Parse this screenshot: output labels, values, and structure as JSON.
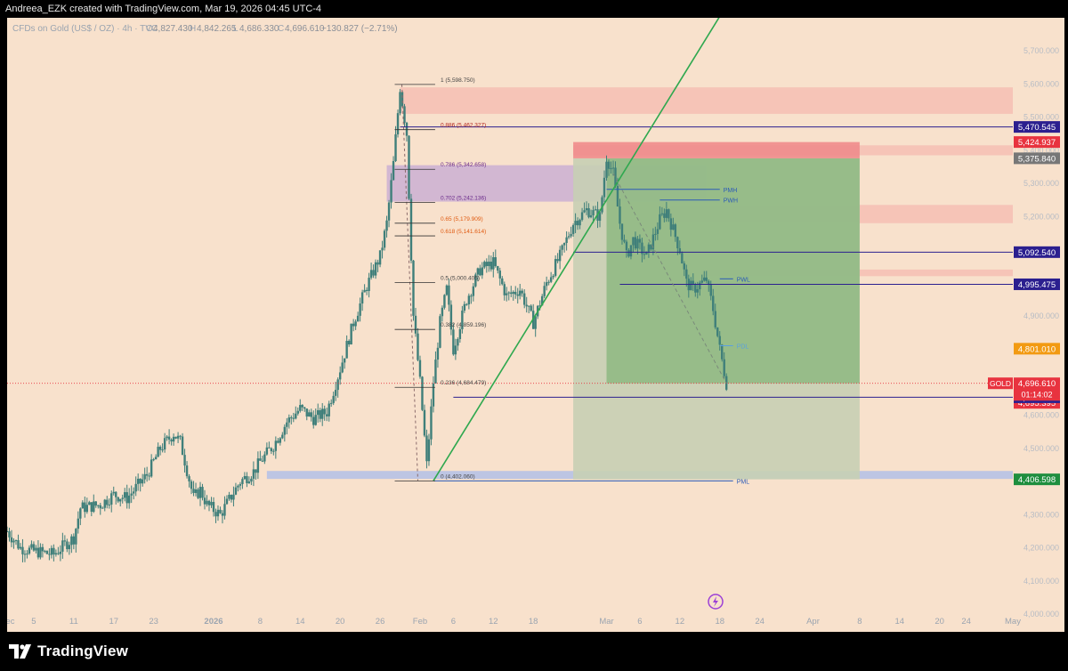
{
  "header": {
    "attribution": "Andreea_EZK created with TradingView.com, Mar 19, 2026 04:45 UTC-4"
  },
  "legend": {
    "symbol": "CFDs on Gold (US$ / OZ) · 4h · TVC",
    "o_label": "O",
    "o": "4,827.430",
    "h_label": "H",
    "h": "4,842.265",
    "l_label": "L",
    "l": "4,686.330",
    "c_label": "C",
    "c": "4,696.610",
    "change": "−130.827 (−2.71%)"
  },
  "footer": {
    "brand": "TradingView"
  },
  "colors": {
    "background": "#f8e1cc",
    "candle": "#3f7f7a",
    "trendline": "#2fa84f",
    "navy": "#2b1f8f",
    "fib_purple": "#6a2a8a",
    "fib_orange": "#e05a10",
    "fib_red": "#b3261e",
    "price_red": "#e8333f",
    "zone_red": "#f6b9b0",
    "zone_purple": "#c6a8d4",
    "zone_blue": "#b3bfe6",
    "zone_green": "#89b77e",
    "zone_grey": "#c7cfb4"
  },
  "chart_data": {
    "type": "candlestick",
    "title": "CFDs on Gold (US$ / OZ) · 4h · TVC",
    "ylim": [
      4000,
      5800
    ],
    "yticks": [
      {
        "v": 4000,
        "label": "4,000.000"
      },
      {
        "v": 4100,
        "label": "4,100.000"
      },
      {
        "v": 4200,
        "label": "4,200.000"
      },
      {
        "v": 4300,
        "label": "4,300.000"
      },
      {
        "v": 4400,
        "label": "4,400.000"
      },
      {
        "v": 4500,
        "label": "4,500.000"
      },
      {
        "v": 4600,
        "label": "4,600.000"
      },
      {
        "v": 4700,
        "label": "4,700.000"
      },
      {
        "v": 4800,
        "label": "4,800.000"
      },
      {
        "v": 4900,
        "label": "4,900.000"
      },
      {
        "v": 5000,
        "label": "5,000.000"
      },
      {
        "v": 5100,
        "label": "5,100.000"
      },
      {
        "v": 5200,
        "label": "5,200.000"
      },
      {
        "v": 5300,
        "label": "5,300.000"
      },
      {
        "v": 5400,
        "label": "5,400.000"
      },
      {
        "v": 5500,
        "label": "5,500.000"
      },
      {
        "v": 5600,
        "label": "5,600.000"
      },
      {
        "v": 5700,
        "label": "5,700.000"
      }
    ],
    "xlim": [
      "2025-12-01",
      "2026-05-01"
    ],
    "xticks": [
      {
        "d": "2025-12-01",
        "label": "Dec"
      },
      {
        "d": "2025-12-05",
        "label": "5"
      },
      {
        "d": "2025-12-11",
        "label": "11"
      },
      {
        "d": "2025-12-17",
        "label": "17"
      },
      {
        "d": "2025-12-23",
        "label": "23"
      },
      {
        "d": "2026-01-01",
        "label": "2026"
      },
      {
        "d": "2026-01-08",
        "label": "8"
      },
      {
        "d": "2026-01-14",
        "label": "14"
      },
      {
        "d": "2026-01-20",
        "label": "20"
      },
      {
        "d": "2026-01-26",
        "label": "26"
      },
      {
        "d": "2026-02-01",
        "label": "Feb"
      },
      {
        "d": "2026-02-06",
        "label": "6"
      },
      {
        "d": "2026-02-12",
        "label": "12"
      },
      {
        "d": "2026-02-18",
        "label": "18"
      },
      {
        "d": "2026-03-01",
        "label": "Mar"
      },
      {
        "d": "2026-03-06",
        "label": "6"
      },
      {
        "d": "2026-03-12",
        "label": "12"
      },
      {
        "d": "2026-03-18",
        "label": "18"
      },
      {
        "d": "2026-03-24",
        "label": "24"
      },
      {
        "d": "2026-04-01",
        "label": "Apr"
      },
      {
        "d": "2026-04-08",
        "label": "8"
      },
      {
        "d": "2026-04-14",
        "label": "14"
      },
      {
        "d": "2026-04-20",
        "label": "20"
      },
      {
        "d": "2026-04-24",
        "label": "24"
      },
      {
        "d": "2026-05-01",
        "label": "May"
      }
    ],
    "price_path": [
      [
        "2025-12-01",
        4250
      ],
      [
        "2025-12-03",
        4200
      ],
      [
        "2025-12-05",
        4190
      ],
      [
        "2025-12-08",
        4180
      ],
      [
        "2025-12-10",
        4215
      ],
      [
        "2025-12-11",
        4230
      ],
      [
        "2025-12-12",
        4320
      ],
      [
        "2025-12-15",
        4330
      ],
      [
        "2025-12-17",
        4360
      ],
      [
        "2025-12-19",
        4350
      ],
      [
        "2025-12-22",
        4420
      ],
      [
        "2025-12-24",
        4500
      ],
      [
        "2025-12-26",
        4545
      ],
      [
        "2025-12-27",
        4520
      ],
      [
        "2025-12-29",
        4350
      ],
      [
        "2025-12-30",
        4375
      ],
      [
        "2025-12-31",
        4330
      ],
      [
        "2026-01-02",
        4300
      ],
      [
        "2026-01-05",
        4400
      ],
      [
        "2026-01-07",
        4430
      ],
      [
        "2026-01-08",
        4460
      ],
      [
        "2026-01-10",
        4510
      ],
      [
        "2026-01-12",
        4580
      ],
      [
        "2026-01-14",
        4620
      ],
      [
        "2026-01-16",
        4590
      ],
      [
        "2026-01-18",
        4610
      ],
      [
        "2026-01-20",
        4740
      ],
      [
        "2026-01-22",
        4880
      ],
      [
        "2026-01-24",
        4990
      ],
      [
        "2026-01-26",
        5080
      ],
      [
        "2026-01-27",
        5180
      ],
      [
        "2026-01-28",
        5360
      ],
      [
        "2026-01-29",
        5590
      ],
      [
        "2026-01-30",
        5450
      ],
      [
        "2026-01-31",
        4900
      ],
      [
        "2026-02-01",
        4700
      ],
      [
        "2026-02-02",
        4450
      ],
      [
        "2026-02-03",
        4700
      ],
      [
        "2026-02-04",
        4880
      ],
      [
        "2026-02-05",
        4980
      ],
      [
        "2026-02-06",
        4800
      ],
      [
        "2026-02-08",
        4950
      ],
      [
        "2026-02-10",
        5040
      ],
      [
        "2026-02-12",
        5060
      ],
      [
        "2026-02-14",
        4960
      ],
      [
        "2026-02-16",
        4980
      ],
      [
        "2026-02-18",
        4880
      ],
      [
        "2026-02-20",
        5000
      ],
      [
        "2026-02-22",
        5080
      ],
      [
        "2026-02-24",
        5180
      ],
      [
        "2026-02-26",
        5220
      ],
      [
        "2026-02-28",
        5200
      ],
      [
        "2026-03-01",
        5380
      ],
      [
        "2026-03-02",
        5330
      ],
      [
        "2026-03-03",
        5180
      ],
      [
        "2026-03-04",
        5080
      ],
      [
        "2026-03-05",
        5130
      ],
      [
        "2026-03-07",
        5080
      ],
      [
        "2026-03-09",
        5190
      ],
      [
        "2026-03-10",
        5220
      ],
      [
        "2026-03-11",
        5160
      ],
      [
        "2026-03-12",
        5100
      ],
      [
        "2026-03-13",
        5000
      ],
      [
        "2026-03-14",
        4980
      ],
      [
        "2026-03-16",
        5010
      ],
      [
        "2026-03-17",
        4920
      ],
      [
        "2026-03-18",
        4800
      ],
      [
        "2026-03-19",
        4696.61
      ]
    ],
    "current_price": {
      "label": "GOLD",
      "value": 4696.61,
      "text": "4,696.610",
      "countdown": "01:14:02"
    },
    "price_labels": [
      {
        "v": 5470.545,
        "text": "5,470.545",
        "color": "#2b1f8f"
      },
      {
        "v": 5424.937,
        "text": "5,424.937",
        "color": "#e8333f"
      },
      {
        "v": 5375.84,
        "text": "5,375.840",
        "color": "#777777"
      },
      {
        "v": 5092.54,
        "text": "5,092.540",
        "color": "#2b1f8f"
      },
      {
        "v": 4995.475,
        "text": "4,995.475",
        "color": "#2b1f8f"
      },
      {
        "v": 4801.01,
        "text": "4,801.010",
        "color": "#f29a12"
      },
      {
        "v": 4695.395,
        "text": "4,695.395",
        "color": "#e8333f"
      },
      {
        "v": 4654.355,
        "text": "4,654.355",
        "color": "#2b1f8f"
      },
      {
        "v": 4406.598,
        "text": "4,406.598",
        "color": "#1e8e3e"
      }
    ],
    "fib": {
      "start": "2026-01-29",
      "end": "2026-02-03",
      "levels": [
        {
          "v": 5598.75,
          "text": "1 (5,598.750)",
          "color": "#444444"
        },
        {
          "v": 5462.327,
          "text": "0.886 (5,462.327)",
          "color": "#b3261e"
        },
        {
          "v": 5342.658,
          "text": "0.786 (5,342.658)",
          "color": "#6a2a8a"
        },
        {
          "v": 5242.136,
          "text": "0.702 (5,242.136)",
          "color": "#6a2a8a"
        },
        {
          "v": 5179.909,
          "text": "0.65 (5,179.909)",
          "color": "#e05a10"
        },
        {
          "v": 5141.614,
          "text": "0.618 (5,141.614)",
          "color": "#e05a10"
        },
        {
          "v": 5000.405,
          "text": "0.5 (5,000.405)",
          "color": "#444444"
        },
        {
          "v": 4859.196,
          "text": "0.382 (4,859.196)",
          "color": "#444444"
        },
        {
          "v": 4684.479,
          "text": "0.236 (4,684.479)",
          "color": "#444444"
        },
        {
          "v": 4402.06,
          "text": "0 (4,402.060)",
          "color": "#444444"
        }
      ]
    },
    "zones": [
      {
        "d0": "2026-01-29",
        "d1": "2026-05-01",
        "v0": 5510,
        "v1": 5590,
        "color": "#f6b9b0",
        "opacity": 0.75
      },
      {
        "d0": "2026-02-24",
        "d1": "2026-05-01",
        "v0": 5385,
        "v1": 5415,
        "color": "#f6b9b0",
        "opacity": 0.75
      },
      {
        "d0": "2026-03-09",
        "d1": "2026-05-01",
        "v0": 5180,
        "v1": 5235,
        "color": "#f6b9b0",
        "opacity": 0.75
      },
      {
        "d0": "2026-03-16",
        "d1": "2026-05-01",
        "v0": 5020,
        "v1": 5040,
        "color": "#f6b9b0",
        "opacity": 0.75
      },
      {
        "d0": "2026-01-27",
        "d1": "2026-03-16",
        "v0": 5245,
        "v1": 5355,
        "color": "#c6a8d4",
        "opacity": 0.75
      },
      {
        "d0": "2026-01-09",
        "d1": "2026-05-01",
        "v0": 4408,
        "v1": 4432,
        "color": "#b3bfe6",
        "opacity": 0.85
      },
      {
        "d0": "2026-02-24",
        "d1": "2026-04-08",
        "v0": 4406.6,
        "v1": 4654.4,
        "color": "#c7cfb4",
        "opacity": 0.9
      },
      {
        "d0": "2026-02-24",
        "d1": "2026-04-08",
        "v0": 4654.4,
        "v1": 5375.8,
        "color": "#c7cfb4",
        "opacity": 0.9
      },
      {
        "d0": "2026-03-01",
        "d1": "2026-04-08",
        "v0": 4696.6,
        "v1": 5375.8,
        "color": "#89b77e",
        "opacity": 0.8
      },
      {
        "d0": "2026-02-24",
        "d1": "2026-04-08",
        "v0": 5375.8,
        "v1": 5424.9,
        "color": "#f08c8c",
        "opacity": 0.9
      }
    ],
    "hlines": [
      {
        "d0": "2026-03-01",
        "d1": "2026-03-18",
        "v": 5282,
        "label": "PMH",
        "color": "#2b5bb8"
      },
      {
        "d0": "2026-03-09",
        "d1": "2026-03-18",
        "v": 5250,
        "label": "PWH",
        "color": "#2b5bb8"
      },
      {
        "d0": "2026-03-18",
        "d1": "2026-03-20",
        "v": 5012,
        "label": "PWL",
        "color": "#2b5bb8"
      },
      {
        "d0": "2026-03-18",
        "d1": "2026-03-20",
        "v": 4810,
        "label": "PDL",
        "color": "#5aa0e0"
      },
      {
        "d0": "2026-02-03",
        "d1": "2026-03-20",
        "v": 4402.06,
        "label": "PML",
        "color": "#2b5bb8"
      },
      {
        "d0": "2026-01-29",
        "d1": "2026-05-01",
        "v": 5470.545,
        "label": "",
        "color": "#2b1f8f"
      },
      {
        "d0": "2026-02-24",
        "d1": "2026-05-01",
        "v": 5092.54,
        "label": "",
        "color": "#2b1f8f"
      },
      {
        "d0": "2026-03-03",
        "d1": "2026-05-01",
        "v": 4995.475,
        "label": "",
        "color": "#2b1f8f"
      },
      {
        "d0": "2026-02-06",
        "d1": "2026-05-01",
        "v": 4654.355,
        "label": "",
        "color": "#2b1f8f"
      }
    ],
    "trendline": {
      "d0": "2026-02-03",
      "v0": 4402.06,
      "d1": "2026-03-24",
      "v1": 6000,
      "color": "#2fa84f"
    },
    "dashed_line": {
      "d0": "2026-03-02",
      "v0": 5330,
      "d1": "2026-03-19",
      "v1": 4696.61,
      "color": "#7a8a7a"
    }
  }
}
